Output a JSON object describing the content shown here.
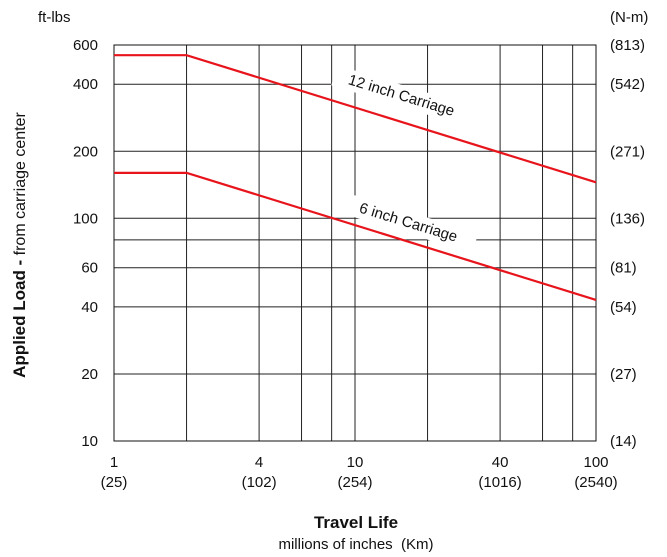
{
  "chart_data": {
    "type": "line",
    "x_scale": "log",
    "y_scale": "log",
    "xlim": [
      1,
      100
    ],
    "ylim": [
      10,
      600
    ],
    "grid": true,
    "xlabel": "Travel Life",
    "xlabel_sub": "millions of inches  (Km)",
    "ylabel": "Applied Load -",
    "ylabel_sub": " from carriage center",
    "y_unit_left": "ft-lbs",
    "y_unit_right": "(N-m)",
    "x_ticks": [
      {
        "value": 1,
        "label": "1",
        "sub": "(25)"
      },
      {
        "value": 4,
        "label": "4",
        "sub": "(102)"
      },
      {
        "value": 10,
        "label": "10",
        "sub": "(254)"
      },
      {
        "value": 40,
        "label": "40",
        "sub": "(1016)"
      },
      {
        "value": 100,
        "label": "100",
        "sub": "(2540)"
      }
    ],
    "y_ticks": [
      {
        "value": 10,
        "label": "10",
        "right": "(14)"
      },
      {
        "value": 20,
        "label": "20",
        "right": "(27)"
      },
      {
        "value": 40,
        "label": "40",
        "right": "(54)"
      },
      {
        "value": 60,
        "label": "60",
        "right": "(81)"
      },
      {
        "value": 100,
        "label": "100",
        "right": "(136)"
      },
      {
        "value": 200,
        "label": "200",
        "right": "(271)"
      },
      {
        "value": 400,
        "label": "400",
        "right": "(542)"
      },
      {
        "value": 600,
        "label": "600",
        "right": "(813)"
      }
    ],
    "x_grid": [
      1,
      2,
      4,
      6,
      8,
      10,
      20,
      40,
      60,
      80,
      100
    ],
    "y_grid": [
      10,
      20,
      40,
      60,
      80,
      100,
      200,
      400,
      600
    ],
    "series": [
      {
        "name": "12 inch Carriage",
        "color": "#e8141c",
        "x": [
          1,
          2,
          100
        ],
        "y": [
          540,
          540,
          145
        ]
      },
      {
        "name": "6 inch Carriage",
        "color": "#e8141c",
        "x": [
          1,
          2,
          100
        ],
        "y": [
          160,
          160,
          43
        ]
      }
    ]
  }
}
